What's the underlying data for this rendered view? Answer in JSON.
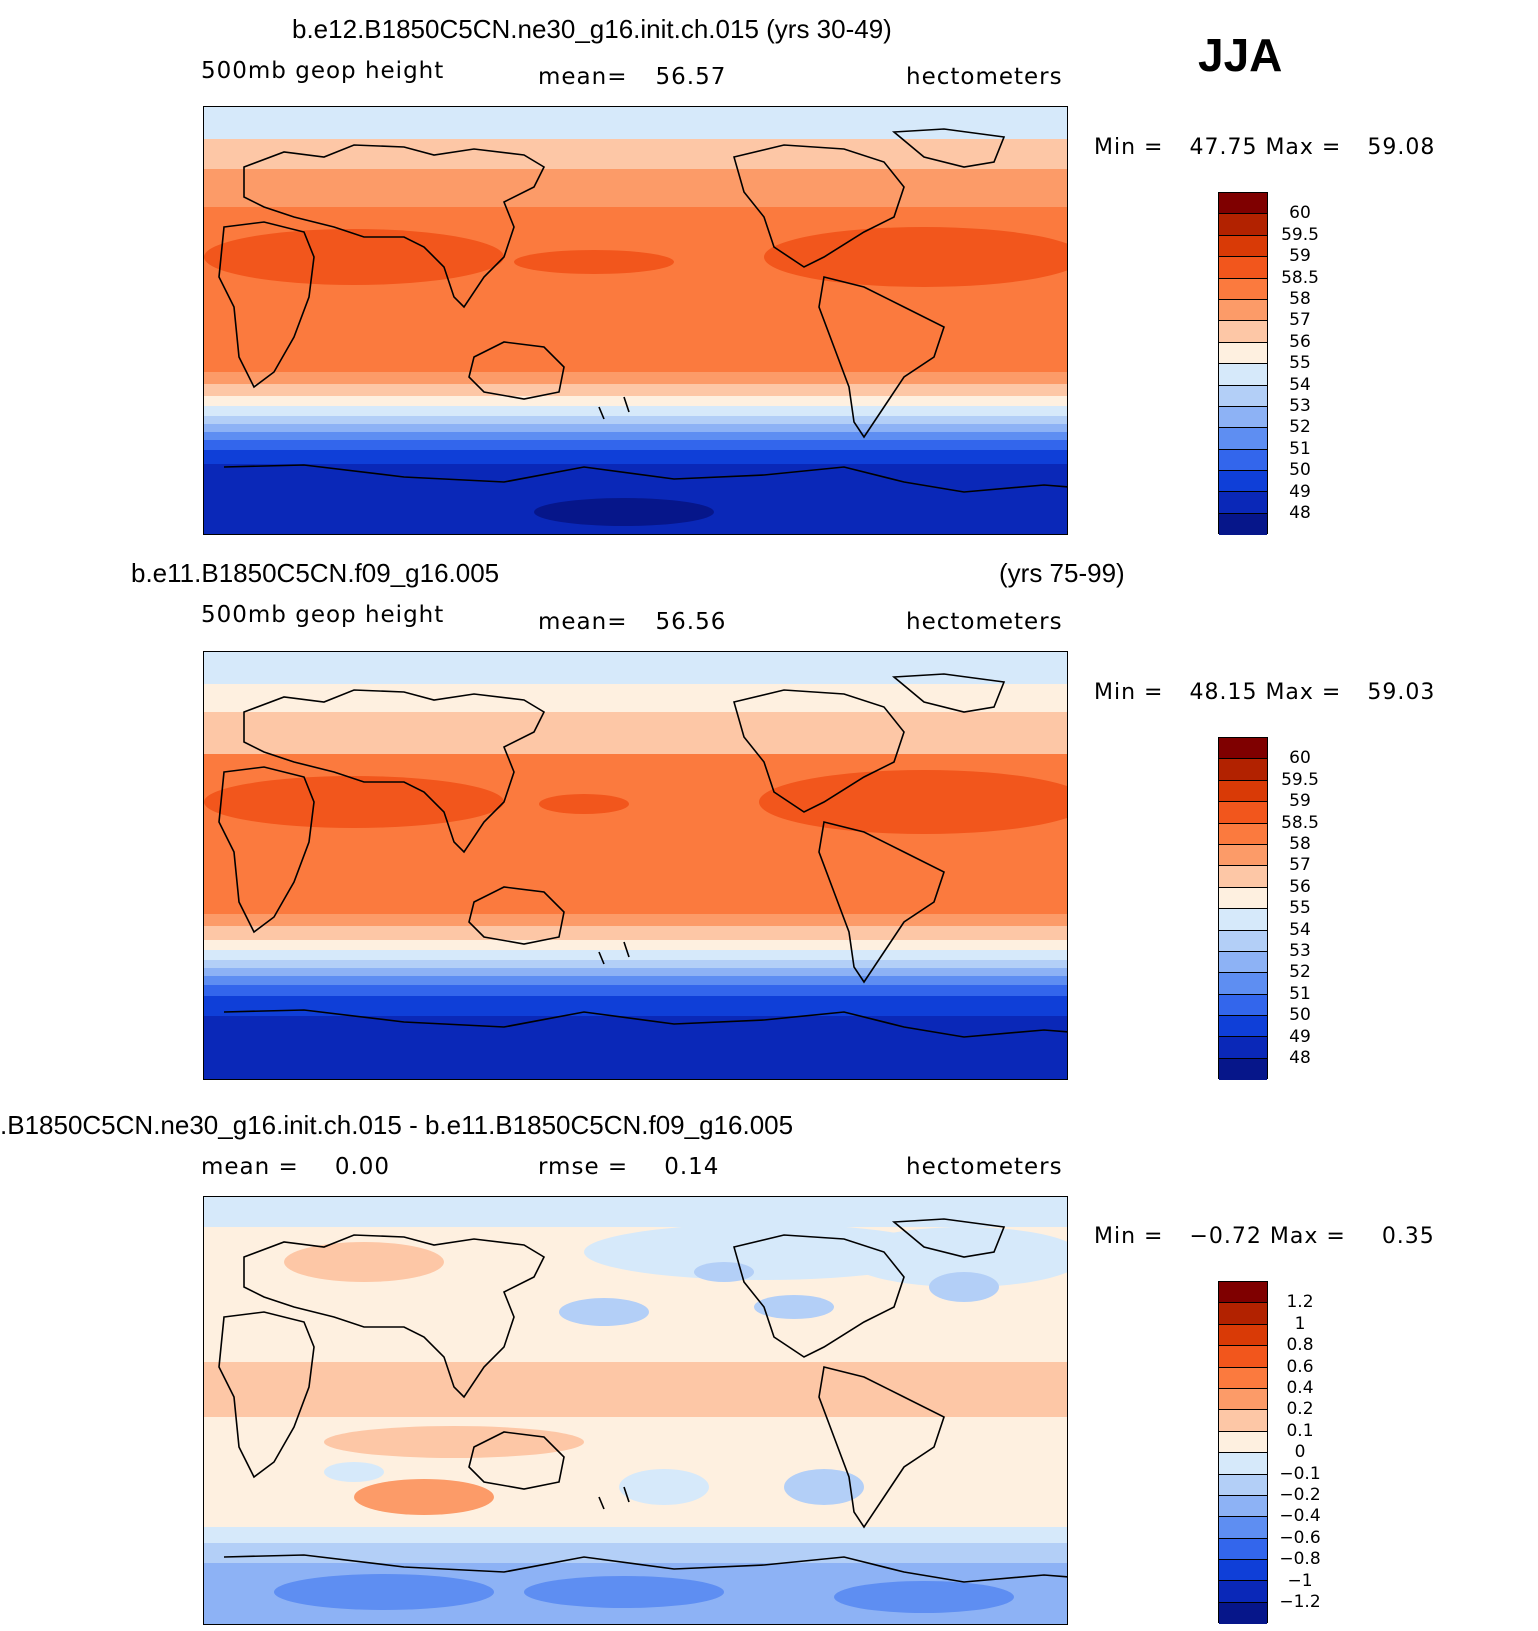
{
  "season": "JJA",
  "panels": [
    {
      "title": "b.e12.B1850C5CN.ne30_g16.init.ch.015 (yrs 30-49)",
      "title_right": "",
      "variable": "500mb geop height",
      "stat1_label": "mean=",
      "stat1_value": "56.57",
      "stat2_label": "",
      "stat2_value": "",
      "units": "hectometers",
      "min_label": "Min =",
      "min_value": "47.75",
      "max_label": "Max =",
      "max_value": "59.08",
      "colorbar_labels": [
        "60",
        "59.5",
        "59",
        "58.5",
        "58",
        "57",
        "56",
        "55",
        "54",
        "53",
        "52",
        "51",
        "50",
        "49",
        "48"
      ]
    },
    {
      "title": "b.e11.B1850C5CN.f09_g16.005",
      "title_right": "(yrs 75-99)",
      "variable": "500mb geop height",
      "stat1_label": "mean=",
      "stat1_value": "56.56",
      "stat2_label": "",
      "stat2_value": "",
      "units": "hectometers",
      "min_label": "Min =",
      "min_value": "48.15",
      "max_label": "Max =",
      "max_value": "59.03",
      "colorbar_labels": [
        "60",
        "59.5",
        "59",
        "58.5",
        "58",
        "57",
        "56",
        "55",
        "54",
        "53",
        "52",
        "51",
        "50",
        "49",
        "48"
      ]
    },
    {
      "title": ".B1850C5CN.ne30_g16.init.ch.015 - b.e11.B1850C5CN.f09_g16.005",
      "title_right": "",
      "variable": "",
      "stat1_label": "mean =",
      "stat1_value": "0.00",
      "stat2_label": "rmse =",
      "stat2_value": "0.14",
      "units": "hectometers",
      "min_label": "Min =",
      "min_value": "−0.72",
      "max_label": "Max =",
      "max_value": "0.35",
      "colorbar_labels": [
        "1.2",
        "1",
        "0.8",
        "0.6",
        "0.4",
        "0.2",
        "0.1",
        "0",
        "−0.1",
        "−0.2",
        "−0.4",
        "−0.6",
        "−0.8",
        "−1",
        "−1.2"
      ]
    }
  ],
  "colors": {
    "colorbar_fills": [
      "#7f0000",
      "#b22200",
      "#d93a06",
      "#f2561c",
      "#fb7a3e",
      "#fc9b68",
      "#fdc7a6",
      "#fef0e0",
      "#d6e9fa",
      "#b3cff7",
      "#8db2f5",
      "#5e8ef2",
      "#3366ec",
      "#0f3fd8",
      "#0a28b8",
      "#06168a"
    ],
    "land_outline": "#000000"
  }
}
